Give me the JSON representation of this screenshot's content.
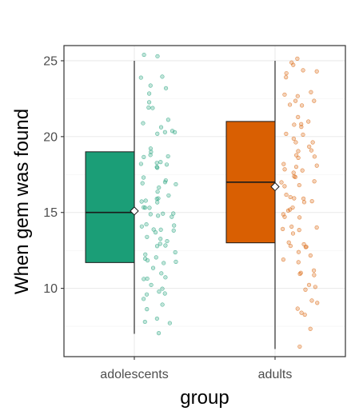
{
  "chart_data": {
    "type": "box",
    "xlabel": "group",
    "ylabel": "When gem was found",
    "ylim": [
      5.5,
      26.0
    ],
    "yticks": [
      10,
      15,
      20,
      25
    ],
    "grid": true,
    "legend": "none",
    "categories": [
      "adolescents",
      "adults"
    ],
    "series": [
      {
        "category": "adolescents",
        "color": "#1b9e77",
        "min": 7,
        "q1": 11.7,
        "median": 15,
        "q3": 19,
        "max": 25,
        "mean": 15.1
      },
      {
        "category": "adults",
        "color": "#d95f02",
        "min": 6,
        "q1": 13,
        "median": 17,
        "q3": 21,
        "max": 25,
        "mean": 16.7
      }
    ],
    "points": {
      "adolescents": [
        7,
        8,
        8,
        9,
        9,
        10,
        10,
        10,
        11,
        11,
        11,
        12,
        12,
        12,
        12,
        13,
        13,
        13,
        14,
        14,
        14,
        15,
        15,
        15,
        15,
        16,
        16,
        16,
        17,
        17,
        17,
        18,
        18,
        18,
        19,
        19,
        19,
        20,
        20,
        21,
        21,
        22,
        22,
        23,
        23,
        24,
        24,
        25,
        25,
        10,
        12,
        14,
        16,
        18,
        20,
        22,
        9,
        11,
        13,
        15,
        17,
        19,
        21,
        23,
        8,
        10,
        12,
        14,
        16,
        18,
        20,
        11,
        13,
        15,
        17,
        19,
        12,
        14,
        16,
        18,
        13,
        15,
        17,
        14,
        16,
        15
      ],
      "adults": [
        6,
        7,
        8,
        8,
        9,
        9,
        10,
        10,
        11,
        11,
        12,
        12,
        13,
        13,
        13,
        14,
        14,
        14,
        15,
        15,
        15,
        16,
        16,
        16,
        17,
        17,
        17,
        18,
        18,
        18,
        19,
        19,
        19,
        20,
        20,
        20,
        21,
        21,
        21,
        22,
        22,
        22,
        23,
        23,
        24,
        24,
        25,
        25,
        10,
        12,
        14,
        16,
        18,
        20,
        22,
        24,
        9,
        11,
        13,
        15,
        17,
        19,
        21,
        23,
        11,
        13,
        15,
        17,
        19,
        21,
        12,
        14,
        16,
        18,
        20,
        15,
        17,
        19,
        16,
        18,
        25,
        24
      ]
    }
  }
}
